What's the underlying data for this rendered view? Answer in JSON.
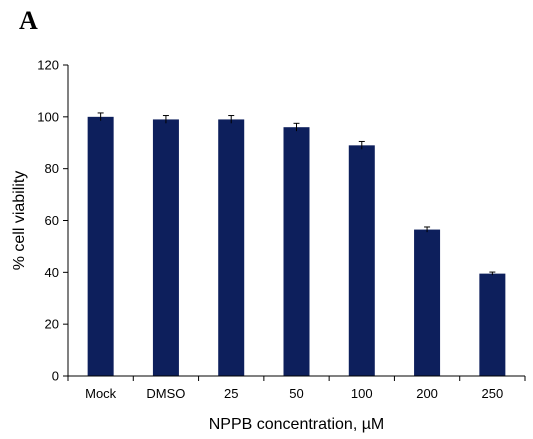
{
  "panel_label": "A",
  "chart_data": {
    "type": "bar",
    "categories": [
      "Mock",
      "DMSO",
      "25",
      "50",
      "100",
      "200",
      "250"
    ],
    "values": [
      100,
      99,
      99,
      96,
      89,
      56.5,
      39.5
    ],
    "errors": [
      1.5,
      1.5,
      1.5,
      1.5,
      1.5,
      1.0,
      0.6
    ],
    "xlabel": "NPPB concentration, µM",
    "ylabel": "% cell viability",
    "ylim": [
      0,
      120
    ],
    "yticks": [
      0,
      20,
      40,
      60,
      80,
      100,
      120
    ],
    "bar_color": "#0d1f5c",
    "grid": false,
    "legend": "none"
  }
}
